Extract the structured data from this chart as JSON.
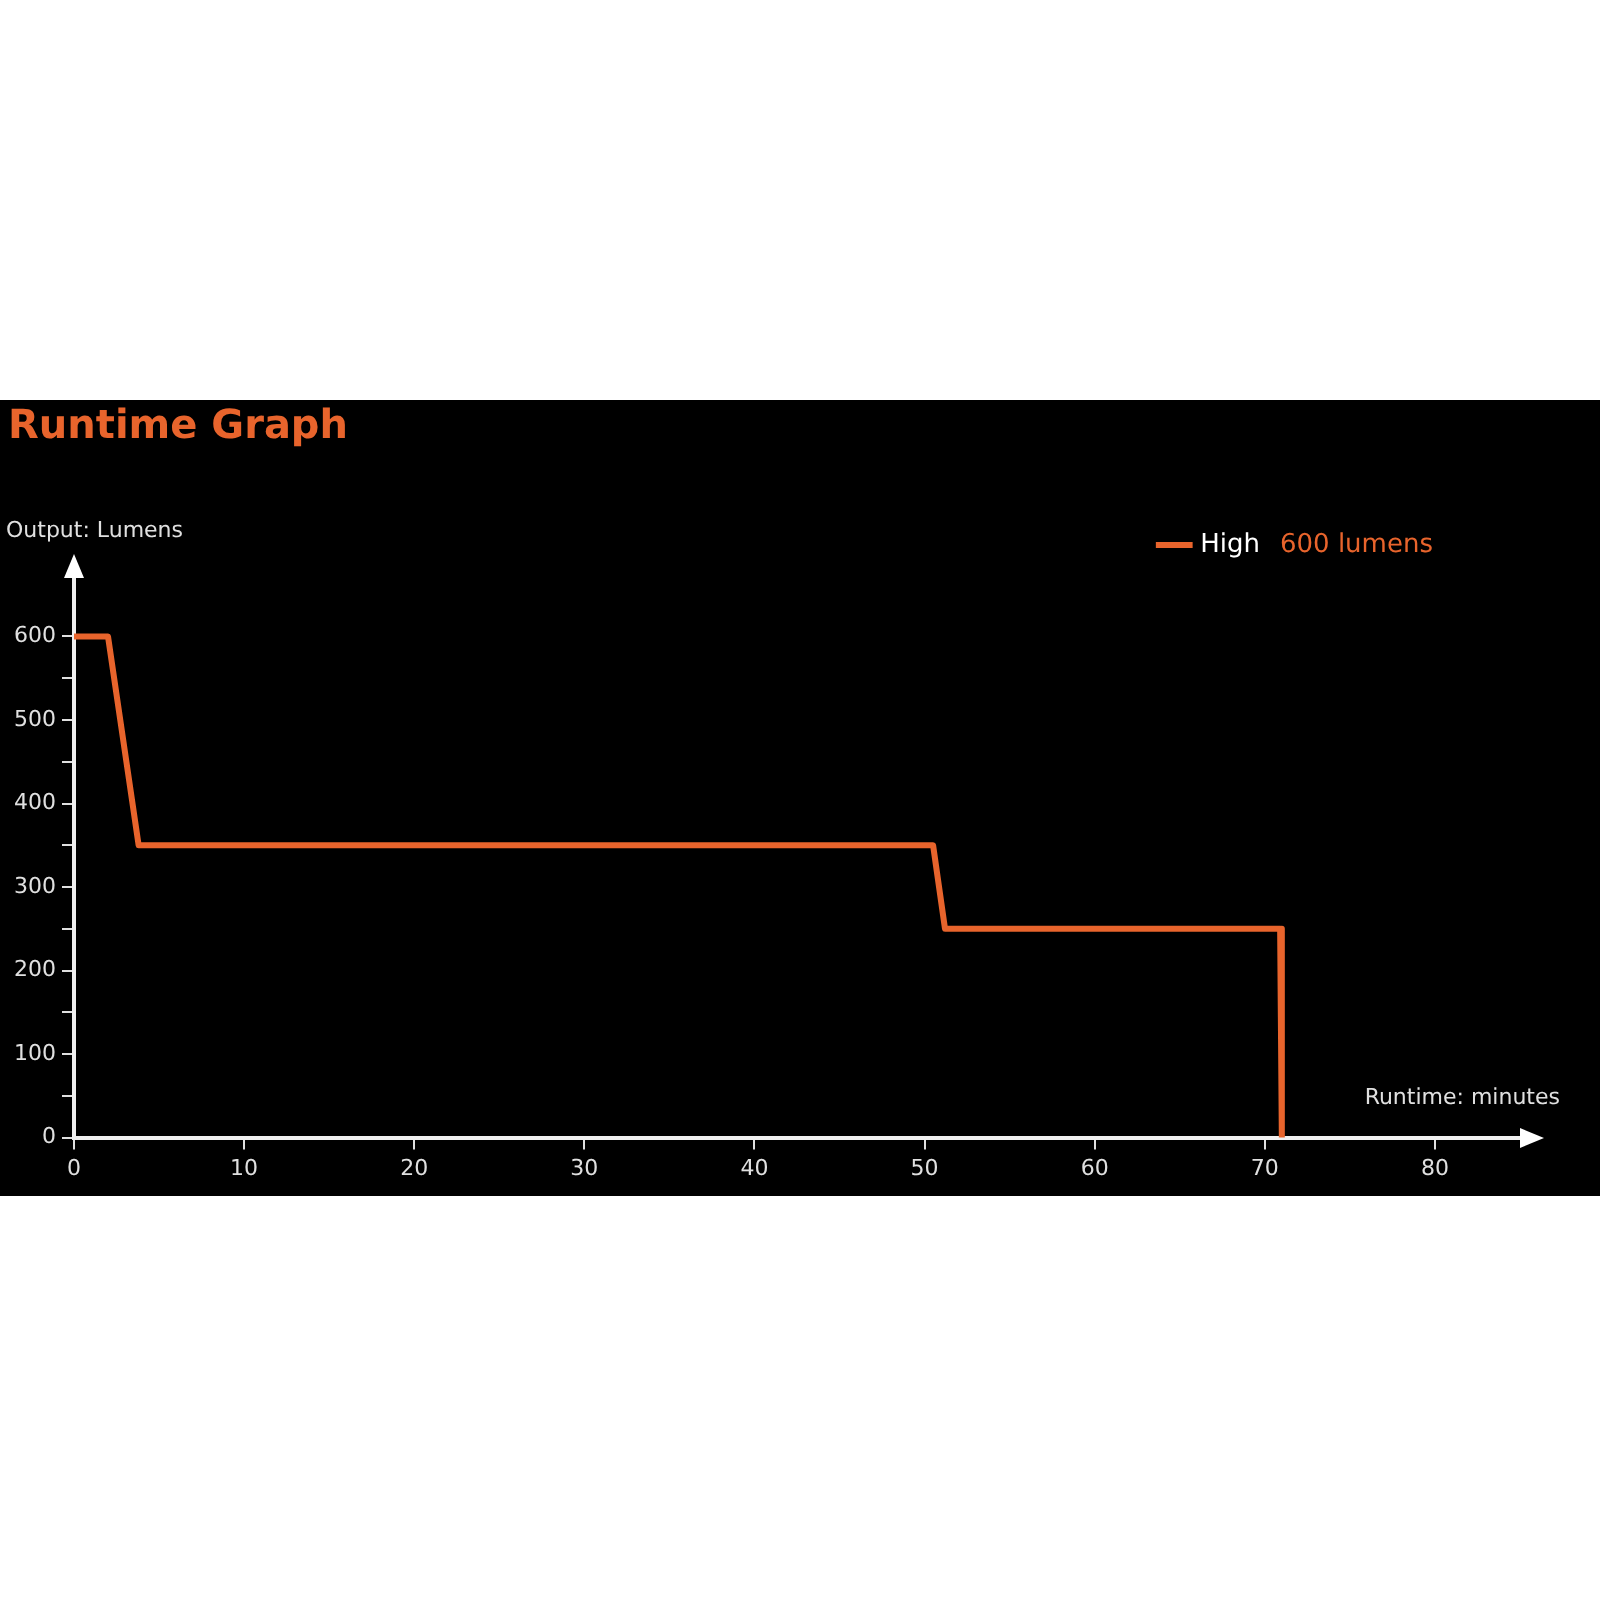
{
  "chart_data": {
    "type": "line",
    "title": "Runtime Graph",
    "xlabel": "Runtime: minutes",
    "ylabel": "Output: Lumens",
    "x": [
      0,
      2,
      3.8,
      50.5,
      51.2,
      70.9,
      71
    ],
    "series": [
      {
        "name": "High",
        "color": "#e8642c",
        "values": [
          600,
          600,
          350,
          350,
          250,
          250,
          0
        ]
      }
    ],
    "xlim": [
      0,
      85
    ],
    "xticks": [
      0,
      10,
      20,
      30,
      40,
      50,
      60,
      70,
      80
    ],
    "ylim": [
      0,
      670
    ],
    "yticks": [
      0,
      {
        "value": 50,
        "label": null
      },
      100,
      {
        "value": 150,
        "label": null
      },
      200,
      {
        "value": 250,
        "label": null
      },
      300,
      {
        "value": 350,
        "label": null
      },
      400,
      {
        "value": 450,
        "label": null
      },
      500,
      {
        "value": 550,
        "label": null
      },
      600
    ],
    "grid": false,
    "legend": "top right",
    "marker": "none",
    "line_style": "solid",
    "annotations": [
      "600 lumens"
    ]
  }
}
